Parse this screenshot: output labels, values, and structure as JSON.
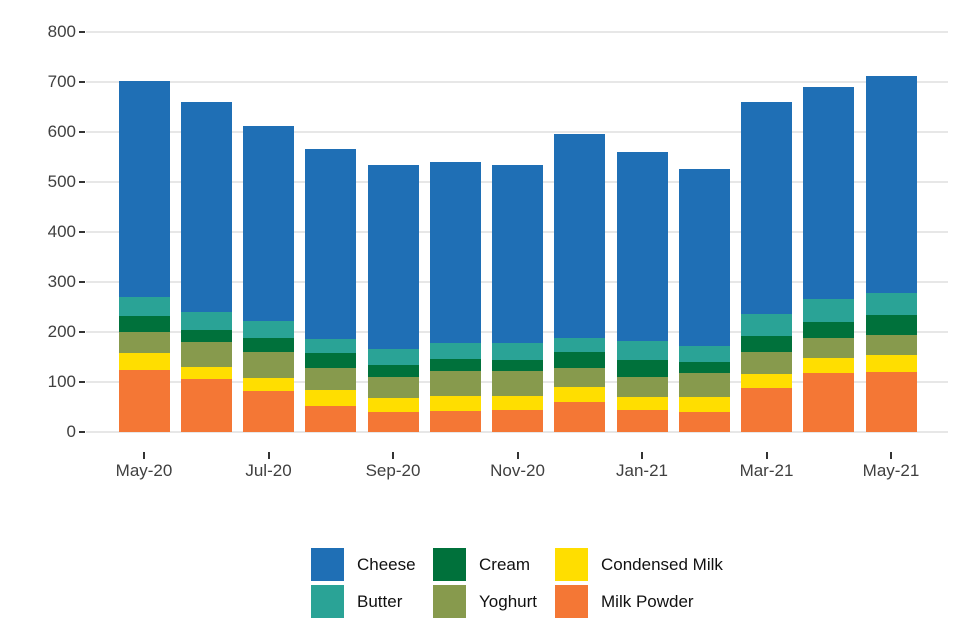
{
  "chart_data": {
    "type": "bar",
    "stacked": true,
    "title": "",
    "xlabel": "",
    "ylabel": "",
    "ylim": [
      0,
      800
    ],
    "y_ticks": [
      0,
      100,
      200,
      300,
      400,
      500,
      600,
      700,
      800
    ],
    "grid": "horizontal",
    "categories": [
      "May-20",
      "Jun-20",
      "Jul-20",
      "Aug-20",
      "Sep-20",
      "Oct-20",
      "Nov-20",
      "Dec-20",
      "Jan-21",
      "Feb-21",
      "Mar-21",
      "Apr-21",
      "May-21"
    ],
    "x_tick_labels": [
      "May-20",
      "Jul-20",
      "Sep-20",
      "Nov-20",
      "Jan-21",
      "Mar-21",
      "May-21"
    ],
    "series": [
      {
        "name": "Milk Powder",
        "color": "#F47735",
        "values": [
          125,
          106,
          82,
          52,
          41,
          43,
          44,
          61,
          44,
          41,
          88,
          118,
          120
        ]
      },
      {
        "name": "Condensed Milk",
        "color": "#FFDE00",
        "values": [
          33,
          25,
          26,
          32,
          28,
          29,
          28,
          29,
          27,
          29,
          28,
          30,
          34
        ]
      },
      {
        "name": "Yoghurt",
        "color": "#879A4D",
        "values": [
          42,
          49,
          53,
          44,
          41,
          50,
          50,
          39,
          40,
          48,
          45,
          41,
          41
        ]
      },
      {
        "name": "Cream",
        "color": "#00713B",
        "values": [
          32,
          25,
          28,
          30,
          25,
          25,
          23,
          32,
          33,
          22,
          32,
          31,
          39
        ]
      },
      {
        "name": "Butter",
        "color": "#2AA396",
        "values": [
          39,
          35,
          34,
          28,
          31,
          32,
          34,
          27,
          38,
          32,
          44,
          46,
          44
        ]
      },
      {
        "name": "Cheese",
        "color": "#1F6FB5",
        "values": [
          431,
          420,
          389,
          381,
          369,
          362,
          356,
          409,
          379,
          355,
          424,
          424,
          434
        ]
      }
    ],
    "totals": [
      702,
      660,
      612,
      567,
      535,
      541,
      535,
      597,
      561,
      527,
      661,
      690,
      712
    ],
    "legend": {
      "position": "bottom",
      "rows": [
        [
          "Cheese",
          "Cream",
          "Condensed Milk"
        ],
        [
          "Butter",
          "Yoghurt",
          "Milk Powder"
        ]
      ]
    }
  },
  "style": {
    "gridline_color": "#e7e7e7",
    "tick_color": "#333333",
    "axis_label_color": "#404040",
    "legend_label_color": "#111111",
    "background": "#ffffff"
  }
}
